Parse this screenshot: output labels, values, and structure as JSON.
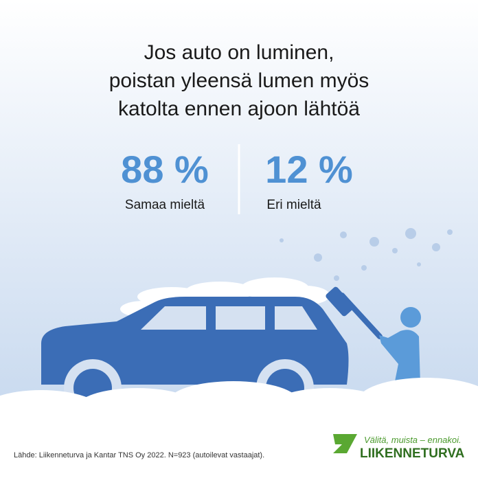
{
  "title": {
    "lines": [
      "Jos auto on luminen,",
      "poistan yleensä lumen myös",
      "katolta ennen ajoon lähtöä"
    ]
  },
  "stats": [
    {
      "value": "88 %",
      "label": "Samaa mieltä"
    },
    {
      "value": "12 %",
      "label": "Eri mieltä"
    }
  ],
  "footer": {
    "source": "Lähde: Liikenneturva ja Kantar TNS Oy 2022. N=923 (autoilevat vastaajat).",
    "slogan": "Välitä, muista – ennakoi.",
    "brand": "LIIKENNETURVA"
  }
}
